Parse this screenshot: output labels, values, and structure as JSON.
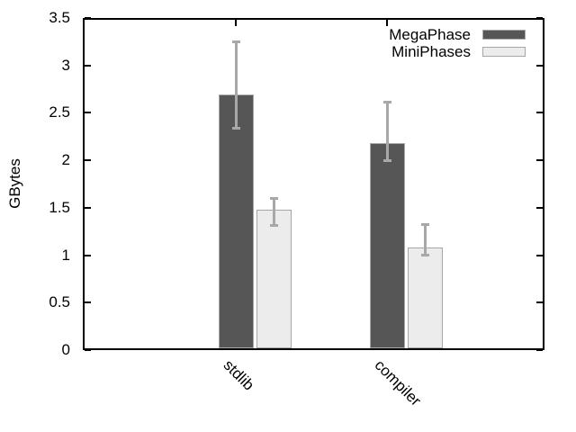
{
  "chart_data": {
    "type": "bar",
    "title": "",
    "ylabel": "GBytes",
    "xlabel": "",
    "categories": [
      "stdlib",
      "compiler"
    ],
    "series": [
      {
        "name": "MegaPhase",
        "color": "#565656",
        "border_color": "#a8a8a8",
        "values": [
          2.69,
          2.18
        ],
        "err_low": [
          2.33,
          1.99
        ],
        "err_high": [
          3.25,
          2.62
        ]
      },
      {
        "name": "MiniPhases",
        "color": "#ececec",
        "border_color": "#a6a6a6",
        "values": [
          1.48,
          1.08
        ],
        "err_low": [
          1.31,
          1.0
        ],
        "err_high": [
          1.6,
          1.33
        ]
      }
    ],
    "ylim": [
      0,
      3.5
    ],
    "ytick_step": 0.5,
    "ytick_labels": [
      "0",
      "0.5",
      "1",
      "1.5",
      "2",
      "2.5",
      "3",
      "3.5"
    ],
    "x_label_rotation_deg": 45,
    "grid": false,
    "error_bars": true,
    "legend_position": "top-right",
    "colors": {
      "axis": "#000000",
      "error_bar": "#a8a8a8",
      "background": "#ffffff"
    }
  }
}
